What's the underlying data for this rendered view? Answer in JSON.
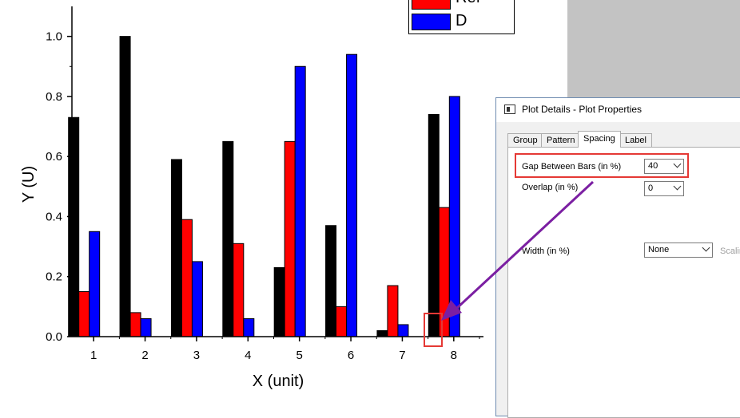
{
  "chart_data": {
    "type": "bar",
    "categories": [
      "1",
      "2",
      "3",
      "4",
      "5",
      "6",
      "7",
      "8"
    ],
    "series": [
      {
        "name": "",
        "color": "#000000",
        "values": [
          0.73,
          1.0,
          0.59,
          0.65,
          0.23,
          0.37,
          0.02,
          0.74
        ]
      },
      {
        "name": "Ref",
        "color": "#ff0000",
        "values": [
          0.15,
          0.08,
          0.39,
          0.31,
          0.65,
          0.1,
          0.17,
          0.43
        ]
      },
      {
        "name": "D",
        "color": "#0000ff",
        "values": [
          0.35,
          0.06,
          0.25,
          0.06,
          0.9,
          0.94,
          0.04,
          0.8
        ]
      }
    ],
    "xlabel": "X (unit)",
    "ylabel": "Y (U)",
    "ylim": [
      0,
      1.1
    ],
    "yticks": [
      "0.0",
      "0.2",
      "0.4",
      "0.6",
      "0.8",
      "1.0"
    ],
    "legend": [
      "Ref",
      "D"
    ],
    "legend_position": "top-right",
    "grid": false
  },
  "dialog": {
    "title": "Plot Details - Plot Properties",
    "tabs": [
      "Group",
      "Pattern",
      "Spacing",
      "Label"
    ],
    "active_tab": "Spacing",
    "gap_label": "Gap Between Bars (in %)",
    "gap_value": "40",
    "overlap_label": "Overlap (in %)",
    "overlap_value": "0",
    "width_label": "Width (in %)",
    "width_value": "None",
    "scaling_label": "Scalin"
  },
  "colors": {
    "highlight": "#e53935",
    "annotation_arrow": "#7b1fa2"
  }
}
